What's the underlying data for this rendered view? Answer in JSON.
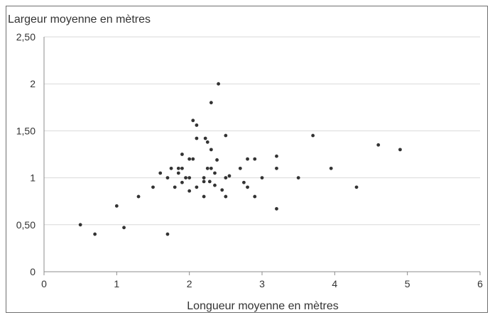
{
  "chart_data": {
    "type": "scatter",
    "title": "",
    "xlabel": "Longueur moyenne en mètres",
    "ylabel": "Largeur moyenne en mètres",
    "xlim": [
      0,
      6
    ],
    "ylim": [
      0,
      2.5
    ],
    "x_ticks": [
      0,
      1,
      2,
      3,
      4,
      5,
      6
    ],
    "x_tick_labels": [
      "0",
      "1",
      "2",
      "3",
      "4",
      "5",
      "6"
    ],
    "y_ticks": [
      0,
      0.5,
      1,
      1.5,
      2,
      2.5
    ],
    "y_tick_labels": [
      "0",
      "0,50",
      "1",
      "1,50",
      "2",
      "2,50"
    ],
    "grid": "horizontal",
    "legend": "none",
    "colors": {
      "point": "#333333",
      "grid": "#d9d9d9",
      "axis": "#8c8c8c"
    },
    "points": [
      {
        "x": 0.5,
        "y": 0.5
      },
      {
        "x": 0.7,
        "y": 0.4
      },
      {
        "x": 1.0,
        "y": 0.7
      },
      {
        "x": 1.1,
        "y": 0.47
      },
      {
        "x": 1.3,
        "y": 0.8
      },
      {
        "x": 1.5,
        "y": 0.9
      },
      {
        "x": 1.6,
        "y": 1.05
      },
      {
        "x": 1.7,
        "y": 1.0
      },
      {
        "x": 1.7,
        "y": 0.4
      },
      {
        "x": 1.75,
        "y": 1.1
      },
      {
        "x": 1.8,
        "y": 0.9
      },
      {
        "x": 1.85,
        "y": 1.05
      },
      {
        "x": 1.85,
        "y": 1.1
      },
      {
        "x": 1.9,
        "y": 1.1
      },
      {
        "x": 1.9,
        "y": 1.25
      },
      {
        "x": 1.9,
        "y": 0.95
      },
      {
        "x": 1.95,
        "y": 1.0
      },
      {
        "x": 2.0,
        "y": 1.2
      },
      {
        "x": 2.0,
        "y": 1.0
      },
      {
        "x": 2.0,
        "y": 0.86
      },
      {
        "x": 2.05,
        "y": 1.2
      },
      {
        "x": 2.05,
        "y": 1.61
      },
      {
        "x": 2.1,
        "y": 1.56
      },
      {
        "x": 2.1,
        "y": 1.42
      },
      {
        "x": 2.1,
        "y": 0.9
      },
      {
        "x": 2.2,
        "y": 1.0
      },
      {
        "x": 2.2,
        "y": 0.96
      },
      {
        "x": 2.2,
        "y": 0.8
      },
      {
        "x": 2.22,
        "y": 1.42
      },
      {
        "x": 2.25,
        "y": 1.38
      },
      {
        "x": 2.25,
        "y": 1.1
      },
      {
        "x": 2.28,
        "y": 0.96
      },
      {
        "x": 2.3,
        "y": 1.8
      },
      {
        "x": 2.3,
        "y": 1.3
      },
      {
        "x": 2.3,
        "y": 1.1
      },
      {
        "x": 2.35,
        "y": 1.05
      },
      {
        "x": 2.35,
        "y": 0.92
      },
      {
        "x": 2.38,
        "y": 1.19
      },
      {
        "x": 2.4,
        "y": 2.0
      },
      {
        "x": 2.45,
        "y": 0.87
      },
      {
        "x": 2.5,
        "y": 1.45
      },
      {
        "x": 2.5,
        "y": 1.0
      },
      {
        "x": 2.5,
        "y": 0.8
      },
      {
        "x": 2.55,
        "y": 1.02
      },
      {
        "x": 2.7,
        "y": 1.1
      },
      {
        "x": 2.75,
        "y": 0.95
      },
      {
        "x": 2.8,
        "y": 1.2
      },
      {
        "x": 2.8,
        "y": 0.9
      },
      {
        "x": 2.9,
        "y": 1.2
      },
      {
        "x": 2.9,
        "y": 0.8
      },
      {
        "x": 3.0,
        "y": 1.0
      },
      {
        "x": 3.2,
        "y": 1.23
      },
      {
        "x": 3.2,
        "y": 1.1
      },
      {
        "x": 3.2,
        "y": 0.67
      },
      {
        "x": 3.5,
        "y": 1.0
      },
      {
        "x": 3.7,
        "y": 1.45
      },
      {
        "x": 3.95,
        "y": 1.1
      },
      {
        "x": 4.3,
        "y": 0.9
      },
      {
        "x": 4.6,
        "y": 1.35
      },
      {
        "x": 4.9,
        "y": 1.3
      }
    ]
  }
}
